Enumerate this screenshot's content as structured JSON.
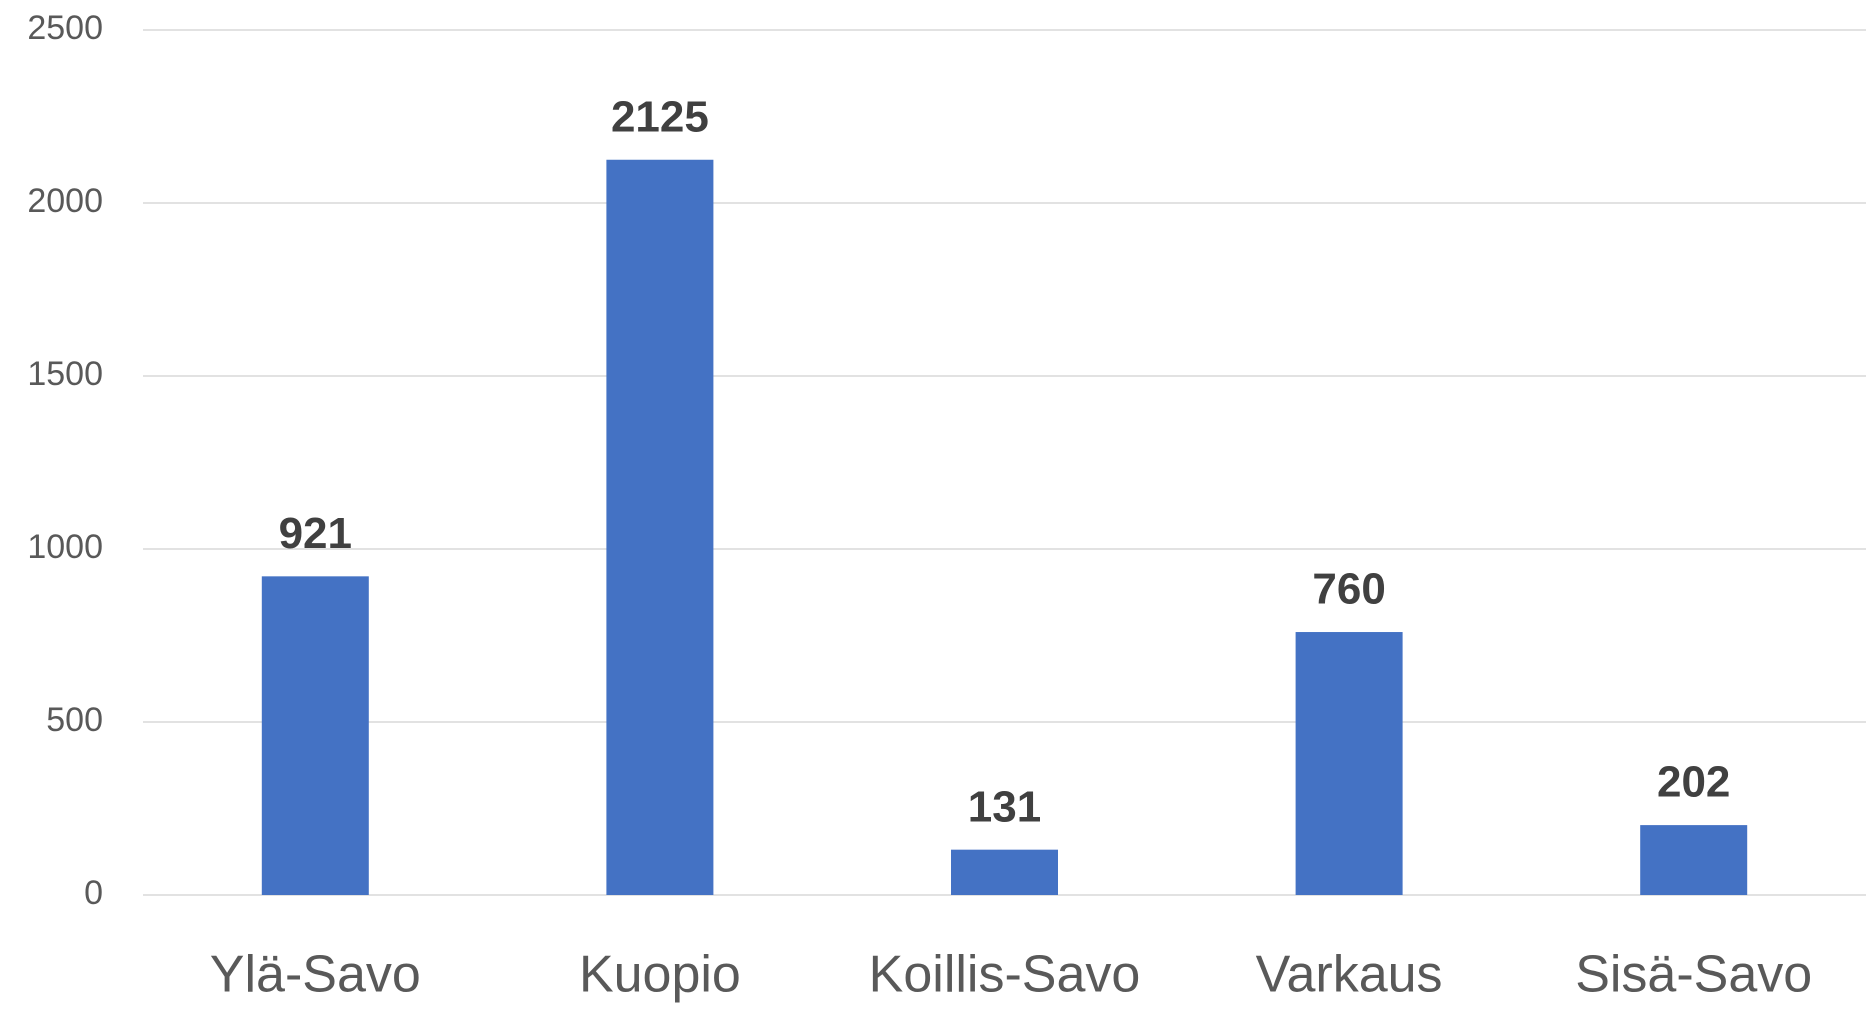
{
  "chart_data": {
    "type": "bar",
    "categories": [
      "Ylä-Savo",
      "Kuopio",
      "Koillis-Savo",
      "Varkaus",
      "Sisä-Savo"
    ],
    "values": [
      921,
      2125,
      131,
      760,
      202
    ],
    "color": "#4472c4",
    "ylim": [
      0,
      2500
    ],
    "yticks": [
      0,
      500,
      1000,
      1500,
      2000,
      2500
    ],
    "grid": true
  }
}
